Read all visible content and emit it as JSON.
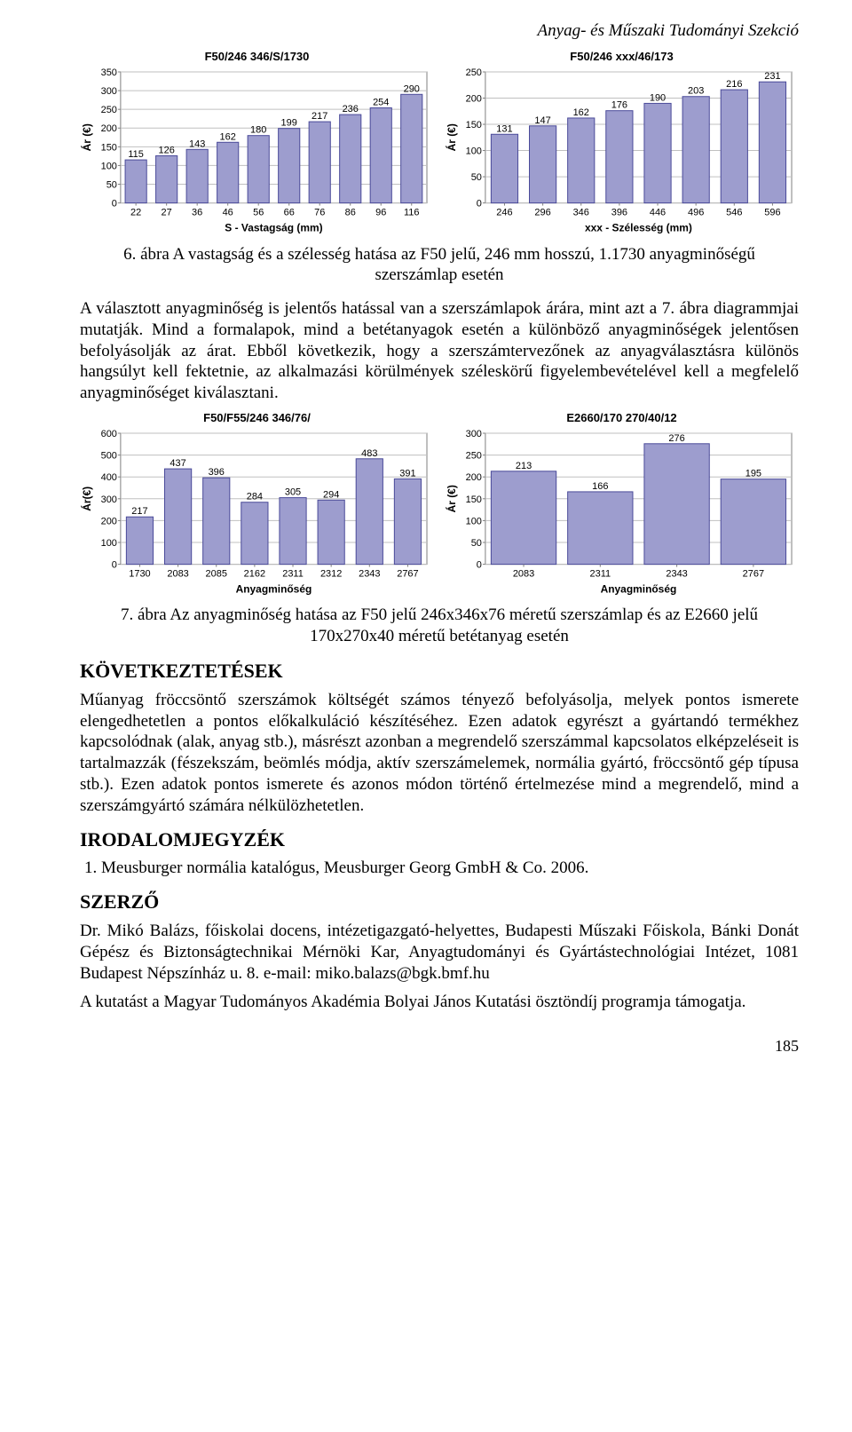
{
  "running_head": "Anyag- és Műszaki Tudományi Szekció",
  "chart1": {
    "title": "F50/246 346/S/1730",
    "ylabel": "Ár (€)",
    "xlabel": "S - Vastagság (mm)",
    "categories": [
      "22",
      "27",
      "36",
      "46",
      "56",
      "66",
      "76",
      "86",
      "96",
      "116"
    ],
    "values": [
      115,
      126,
      143,
      162,
      180,
      199,
      217,
      236,
      254,
      290
    ],
    "ylim": [
      0,
      350
    ],
    "ytick_step": 50,
    "bar_fill": "#9d9dce",
    "bar_stroke": "#4a4a99",
    "plot_bg": "#ffffff",
    "grid": "#c0c0c0",
    "axis_color": "#808080",
    "label_font": 12,
    "tick_font": 11,
    "title_font": 13
  },
  "chart2": {
    "title": "F50/246 xxx/46/173",
    "ylabel": "Ár (€)",
    "xlabel": "xxx - Szélesség (mm)",
    "categories": [
      "246",
      "296",
      "346",
      "396",
      "446",
      "496",
      "546",
      "596"
    ],
    "values": [
      131,
      147,
      162,
      176,
      190,
      203,
      216,
      231
    ],
    "ylim": [
      0,
      250
    ],
    "ytick_step": 50,
    "bar_fill": "#9d9dce",
    "bar_stroke": "#4a4a99",
    "plot_bg": "#ffffff",
    "grid": "#c0c0c0",
    "axis_color": "#808080",
    "label_font": 12,
    "tick_font": 11,
    "title_font": 13
  },
  "caption6": "6. ábra A vastagság és a szélesség hatása az F50 jelű, 246 mm hosszú, 1.1730 anyagminőségű szerszámlap esetén",
  "para1": "A választott anyagminőség is jelentős hatással van a szerszámlapok árára, mint azt a 7. ábra diagrammjai mutatják. Mind a formalapok, mind a betétanyagok esetén a különböző anyagminőségek jelentősen befolyásolják az árat. Ebből következik, hogy a szerszámtervezőnek az anyagválasztásra különös hangsúlyt kell fektetnie, az alkalmazási körülmények széleskörű figyelembevételével kell a megfelelő anyagminőséget kiválasztani.",
  "chart3": {
    "title": "F50/F55/246 346/76/",
    "ylabel": "Ár(€)",
    "xlabel": "Anyagminőség",
    "categories": [
      "1730",
      "2083",
      "2085",
      "2162",
      "2311",
      "2312",
      "2343",
      "2767"
    ],
    "values": [
      217,
      437,
      396,
      284,
      305,
      294,
      483,
      391
    ],
    "ylim": [
      0,
      600
    ],
    "ytick_step": 100,
    "bar_fill": "#9d9dce",
    "bar_stroke": "#4a4a99",
    "plot_bg": "#ffffff",
    "grid": "#c0c0c0",
    "axis_color": "#808080",
    "label_font": 12,
    "tick_font": 11,
    "title_font": 13
  },
  "chart4": {
    "title": "E2660/170 270/40/12",
    "ylabel": "Ár (€)",
    "xlabel": "Anyagminőség",
    "categories": [
      "2083",
      "2311",
      "2343",
      "2767"
    ],
    "values": [
      213,
      166,
      276,
      195
    ],
    "ylim": [
      0,
      300
    ],
    "ytick_step": 50,
    "bar_fill": "#9d9dce",
    "bar_stroke": "#4a4a99",
    "plot_bg": "#ffffff",
    "grid": "#c0c0c0",
    "axis_color": "#808080",
    "label_font": 12,
    "tick_font": 11,
    "title_font": 13,
    "bar_width_ratio": 0.85
  },
  "caption7": "7. ábra Az anyagminőség hatása az F50 jelű 246x346x76 méretű szerszámlap és az E2660 jelű 170x270x40 méretű betétanyag esetén",
  "sec_kovet": "KÖVETKEZTETÉSEK",
  "para2": "Műanyag fröccsöntő szerszámok költségét számos tényező befolyásolja, melyek pontos ismerete elengedhetetlen a pontos előkalkuláció készítéséhez. Ezen adatok egyrészt a gyártandó termékhez kapcsolódnak (alak, anyag stb.), másrészt azonban a megrendelő szerszámmal kapcsolatos elképzeléseit is tartalmazzák (fészekszám, beömlés módja, aktív szerszámelemek, normália gyártó, fröccsöntő gép típusa stb.). Ezen adatok pontos ismerete és azonos módon történő értelmezése mind a megrendelő, mind a szerszámgyártó számára nélkülözhetetlen.",
  "sec_irod": "IRODALOMJEGYZÉK",
  "ref1": "Meusburger normália katalógus, Meusburger Georg GmbH & Co. 2006.",
  "sec_szerzo": "SZERZŐ",
  "para3": "Dr. Mikó Balázs, főiskolai docens, intézetigazgató-helyettes, Budapesti Műszaki Főiskola, Bánki Donát Gépész és Biztonságtechnikai Mérnöki Kar, Anyagtudományi és Gyártástechnológiai Intézet, 1081 Budapest Népszínház u. 8. e-mail: miko.balazs@bgk.bmf.hu",
  "para4": "A kutatást a Magyar Tudományos Akadémia Bolyai János Kutatási ösztöndíj programja támogatja.",
  "page_number": "185"
}
